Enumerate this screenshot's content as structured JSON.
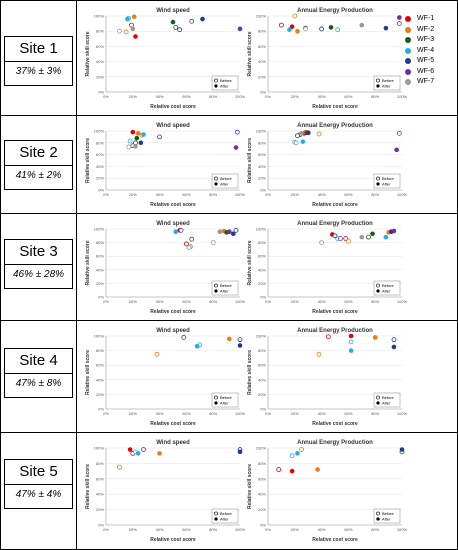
{
  "colors": {
    "WF-1": "#e60000",
    "WF-2": "#f07a10",
    "WF-3": "#1a5a1a",
    "WF-4": "#22aee8",
    "WF-5": "#1c3d8a",
    "WF-6": "#6f2ea0",
    "WF-7": "#999999"
  },
  "legend": [
    "WF-1",
    "WF-2",
    "WF-3",
    "WF-4",
    "WF-5",
    "WF-6",
    "WF-7"
  ],
  "sites": [
    {
      "name": "Site 1",
      "stat": "37% ± 3%"
    },
    {
      "name": "Site 2",
      "stat": "41% ± 2%"
    },
    {
      "name": "Site 3",
      "stat": "46% ± 28%"
    },
    {
      "name": "Site 4",
      "stat": "47% ± 8%"
    },
    {
      "name": "Site 5",
      "stat": "47% ± 4%"
    }
  ],
  "chart_data": [
    {
      "site": "Site 1",
      "type": "scatter",
      "title": "Wind speed",
      "xlabel": "Relative cost score",
      "ylabel": "Relative skill score",
      "xlim": [
        0,
        100
      ],
      "ylim": [
        0,
        100
      ],
      "xticks": [
        "0%",
        "20%",
        "40%",
        "60%",
        "80%",
        "100%"
      ],
      "yticks": [
        "0%",
        "20%",
        "40%",
        "60%",
        "80%",
        "100%"
      ],
      "legend_entries": [
        "Before",
        "After"
      ],
      "points": [
        {
          "wf": "WF-1",
          "before": [
            19,
            88
          ],
          "after": [
            22,
            73
          ]
        },
        {
          "wf": "WF-2",
          "before": [
            15,
            79
          ],
          "after": [
            21,
            99
          ]
        },
        {
          "wf": "WF-3",
          "before": [
            52,
            85
          ],
          "after": [
            50,
            92
          ]
        },
        {
          "wf": "WF-4",
          "before": [
            17,
            97
          ],
          "after": [
            16,
            96
          ]
        },
        {
          "wf": "WF-5",
          "before": [
            55,
            82
          ],
          "after": [
            72,
            96
          ]
        },
        {
          "wf": "WF-6",
          "before": [
            64,
            93
          ],
          "after": [
            100,
            83
          ]
        },
        {
          "wf": "WF-7",
          "before": [
            10,
            80
          ],
          "after": [
            20,
            83
          ]
        }
      ]
    },
    {
      "site": "Site 1",
      "type": "scatter",
      "title": "Annual Energy Production",
      "xlabel": "Relative cost score",
      "ylabel": "Relative skill score",
      "xlim": [
        0,
        100
      ],
      "ylim": [
        0,
        100
      ],
      "xticks": [
        "0%",
        "20%",
        "40%",
        "60%",
        "80%",
        "100%"
      ],
      "yticks": [
        "0%",
        "20%",
        "40%",
        "60%",
        "80%",
        "100%"
      ],
      "legend_entries": [
        "Before",
        "After"
      ],
      "points": [
        {
          "wf": "WF-1",
          "before": [
            10,
            88
          ],
          "after": [
            18,
            86
          ]
        },
        {
          "wf": "WF-2",
          "before": [
            20,
            100
          ],
          "after": [
            22,
            80
          ]
        },
        {
          "wf": "WF-3",
          "before": [
            28,
            84
          ],
          "after": [
            47,
            85
          ]
        },
        {
          "wf": "WF-4",
          "before": [
            52,
            82
          ],
          "after": [
            16,
            82
          ]
        },
        {
          "wf": "WF-5",
          "before": [
            40,
            83
          ],
          "after": [
            88,
            84
          ]
        },
        {
          "wf": "WF-6",
          "before": [
            98,
            90
          ],
          "after": [
            98,
            98
          ]
        },
        {
          "wf": "WF-7",
          "before": [
            28,
            83
          ],
          "after": [
            70,
            88
          ]
        }
      ]
    },
    {
      "site": "Site 2",
      "type": "scatter",
      "title": "Wind speed",
      "xlabel": "Relative cost score",
      "ylabel": "Relative skill score",
      "xlim": [
        0,
        100
      ],
      "ylim": [
        0,
        100
      ],
      "xticks": [
        "0%",
        "20%",
        "40%",
        "60%",
        "80%",
        "100%"
      ],
      "yticks": [
        "0%",
        "20%",
        "40%",
        "60%",
        "80%",
        "100%"
      ],
      "legend_entries": [
        "Before",
        "After"
      ],
      "points": [
        {
          "wf": "WF-1",
          "before": [
            20,
            75
          ],
          "after": [
            20,
            98
          ]
        },
        {
          "wf": "WF-2",
          "before": [
            27,
            93
          ],
          "after": [
            24,
            96
          ]
        },
        {
          "wf": "WF-3",
          "before": [
            22,
            80
          ],
          "after": [
            23,
            88
          ]
        },
        {
          "wf": "WF-4",
          "before": [
            18,
            83
          ],
          "after": [
            28,
            94
          ]
        },
        {
          "wf": "WF-5",
          "before": [
            40,
            90
          ],
          "after": [
            26,
            80
          ]
        },
        {
          "wf": "WF-6",
          "before": [
            98,
            98
          ],
          "after": [
            97,
            72
          ]
        },
        {
          "wf": "WF-7",
          "before": [
            17,
            73
          ],
          "after": [
            22,
            74
          ]
        }
      ]
    },
    {
      "site": "Site 2",
      "type": "scatter",
      "title": "Annual Energy Production",
      "xlabel": "Relative cost score",
      "ylabel": "Relative skill score",
      "xlim": [
        0,
        100
      ],
      "ylim": [
        0,
        100
      ],
      "xticks": [
        "0%",
        "20%",
        "40%",
        "60%",
        "80%",
        "100%"
      ],
      "yticks": [
        "0%",
        "20%",
        "40%",
        "60%",
        "80%",
        "100%"
      ],
      "legend_entries": [
        "Before",
        "After"
      ],
      "points": [
        {
          "wf": "WF-1",
          "before": [
            30,
            97
          ],
          "after": [
            27,
            96
          ]
        },
        {
          "wf": "WF-2",
          "before": [
            38,
            95
          ],
          "after": [
            28,
            98
          ]
        },
        {
          "wf": "WF-3",
          "before": [
            24,
            94
          ],
          "after": [
            29,
            97
          ]
        },
        {
          "wf": "WF-4",
          "before": [
            20,
            81
          ],
          "after": [
            26,
            82
          ]
        },
        {
          "wf": "WF-5",
          "before": [
            22,
            92
          ],
          "after": [
            30,
            97
          ]
        },
        {
          "wf": "WF-6",
          "before": [
            98,
            96
          ],
          "after": [
            96,
            68
          ]
        },
        {
          "wf": "WF-7",
          "before": [
            21,
            80
          ],
          "after": [
            25,
            96
          ]
        }
      ]
    },
    {
      "site": "Site 3",
      "type": "scatter",
      "title": "Wind speed",
      "xlabel": "Relative cost score",
      "ylabel": "Relative skill score",
      "xlim": [
        0,
        100
      ],
      "ylim": [
        0,
        100
      ],
      "xticks": [
        "0%",
        "20%",
        "40%",
        "60%",
        "80%",
        "100%"
      ],
      "yticks": [
        "0%",
        "20%",
        "40%",
        "60%",
        "80%",
        "100%"
      ],
      "legend_entries": [
        "Before",
        "After"
      ],
      "points": [
        {
          "wf": "WF-1",
          "before": [
            60,
            78
          ],
          "after": [
            55,
            98
          ]
        },
        {
          "wf": "WF-2",
          "before": [
            63,
            74
          ],
          "after": [
            88,
            97
          ]
        },
        {
          "wf": "WF-3",
          "before": [
            64,
            85
          ],
          "after": [
            90,
            95
          ]
        },
        {
          "wf": "WF-4",
          "before": [
            62,
            73
          ],
          "after": [
            52,
            96
          ]
        },
        {
          "wf": "WF-5",
          "before": [
            97,
            98
          ],
          "after": [
            95,
            93
          ]
        },
        {
          "wf": "WF-6",
          "before": [
            56,
            98
          ],
          "after": [
            92,
            96
          ]
        },
        {
          "wf": "WF-7",
          "before": [
            80,
            80
          ],
          "after": [
            85,
            96
          ]
        }
      ]
    },
    {
      "site": "Site 3",
      "type": "scatter",
      "title": "Annual Energy Production",
      "xlabel": "Relative cost score",
      "ylabel": "Relative skill score",
      "xlim": [
        0,
        100
      ],
      "ylim": [
        0,
        100
      ],
      "xticks": [
        "0%",
        "20%",
        "40%",
        "60%",
        "80%",
        "100%"
      ],
      "yticks": [
        "0%",
        "20%",
        "40%",
        "60%",
        "80%",
        "100%"
      ],
      "legend_entries": [
        "Before",
        "After"
      ],
      "points": [
        {
          "wf": "WF-1",
          "before": [
            58,
            86
          ],
          "after": [
            48,
            92
          ]
        },
        {
          "wf": "WF-2",
          "before": [
            60,
            82
          ],
          "after": [
            90,
            95
          ]
        },
        {
          "wf": "WF-3",
          "before": [
            75,
            88
          ],
          "after": [
            78,
            93
          ]
        },
        {
          "wf": "WF-4",
          "before": [
            52,
            86
          ],
          "after": [
            88,
            88
          ]
        },
        {
          "wf": "WF-5",
          "before": [
            50,
            90
          ],
          "after": [
            92,
            96
          ]
        },
        {
          "wf": "WF-6",
          "before": [
            54,
            86
          ],
          "after": [
            94,
            97
          ]
        },
        {
          "wf": "WF-7",
          "before": [
            40,
            80
          ],
          "after": [
            70,
            88
          ]
        }
      ]
    },
    {
      "site": "Site 4",
      "type": "scatter",
      "title": "Wind speed",
      "xlabel": "Relative cost score",
      "ylabel": "Relative skill score",
      "xlim": [
        0,
        100
      ],
      "ylim": [
        0,
        100
      ],
      "xticks": [
        "0%",
        "20%",
        "40%",
        "60%",
        "80%",
        "100%"
      ],
      "yticks": [
        "0%",
        "20%",
        "40%",
        "60%",
        "80%",
        "100%"
      ],
      "legend_entries": [
        "Before",
        "After"
      ],
      "points": [
        {
          "wf": "WF-2",
          "before": [
            38,
            75
          ],
          "after": [
            92,
            96
          ]
        },
        {
          "wf": "WF-4",
          "before": [
            70,
            88
          ],
          "after": [
            68,
            86
          ]
        },
        {
          "wf": "WF-5",
          "before": [
            100,
            95
          ],
          "after": [
            100,
            87
          ]
        },
        {
          "wf": "WF-6",
          "before": [
            58,
            98
          ]
        }
      ]
    },
    {
      "site": "Site 4",
      "type": "scatter",
      "title": "Annual Energy Production",
      "xlabel": "Relative cost score",
      "ylabel": "Relative skill score",
      "xlim": [
        0,
        100
      ],
      "ylim": [
        0,
        100
      ],
      "xticks": [
        "0%",
        "20%",
        "40%",
        "60%",
        "80%",
        "100%"
      ],
      "yticks": [
        "0%",
        "20%",
        "40%",
        "60%",
        "80%",
        "100%"
      ],
      "legend_entries": [
        "Before",
        "After"
      ],
      "points": [
        {
          "wf": "WF-1",
          "before": [
            45,
            99
          ],
          "after": [
            62,
            100
          ]
        },
        {
          "wf": "WF-2",
          "before": [
            38,
            75
          ],
          "after": [
            80,
            98
          ]
        },
        {
          "wf": "WF-4",
          "before": [
            62,
            92
          ],
          "after": [
            62,
            80
          ]
        },
        {
          "wf": "WF-5",
          "before": [
            94,
            95
          ],
          "after": [
            94,
            85
          ]
        }
      ]
    },
    {
      "site": "Site 5",
      "type": "scatter",
      "title": "Wind speed",
      "xlabel": "Relative cost score",
      "ylabel": "Relative skill score",
      "xlim": [
        0,
        100
      ],
      "ylim": [
        0,
        100
      ],
      "xticks": [
        "0%",
        "20%",
        "40%",
        "60%",
        "80%",
        "100%"
      ],
      "yticks": [
        "0%",
        "20%",
        "40%",
        "60%",
        "80%",
        "100%"
      ],
      "legend_entries": [
        "Before",
        "After"
      ],
      "points": [
        {
          "wf": "WF-1",
          "before": [
            20,
            93
          ],
          "after": [
            18,
            98
          ]
        },
        {
          "wf": "WF-2",
          "before": [
            10,
            75
          ],
          "after": [
            40,
            93
          ]
        },
        {
          "wf": "WF-4",
          "before": [
            22,
            95
          ],
          "after": [
            24,
            93
          ]
        },
        {
          "wf": "WF-5",
          "before": [
            100,
            98
          ],
          "after": [
            100,
            95
          ]
        },
        {
          "wf": "WF-6",
          "before": [
            28,
            98
          ]
        }
      ]
    },
    {
      "site": "Site 5",
      "type": "scatter",
      "title": "Annual Energy Production",
      "xlabel": "Relative cost score",
      "ylabel": "Relative skill score",
      "xlim": [
        0,
        100
      ],
      "ylim": [
        0,
        100
      ],
      "xticks": [
        "0%",
        "20%",
        "40%",
        "60%",
        "80%",
        "100%"
      ],
      "yticks": [
        "0%",
        "20%",
        "40%",
        "60%",
        "80%",
        "100%"
      ],
      "legend_entries": [
        "Before",
        "After"
      ],
      "points": [
        {
          "wf": "WF-1",
          "before": [
            8,
            72
          ],
          "after": [
            18,
            70
          ]
        },
        {
          "wf": "WF-2",
          "before": [
            25,
            98
          ],
          "after": [
            37,
            72
          ]
        },
        {
          "wf": "WF-4",
          "before": [
            18,
            90
          ],
          "after": [
            22,
            93
          ]
        },
        {
          "wf": "WF-5",
          "before": [
            100,
            95
          ],
          "after": [
            100,
            98
          ]
        }
      ]
    }
  ]
}
